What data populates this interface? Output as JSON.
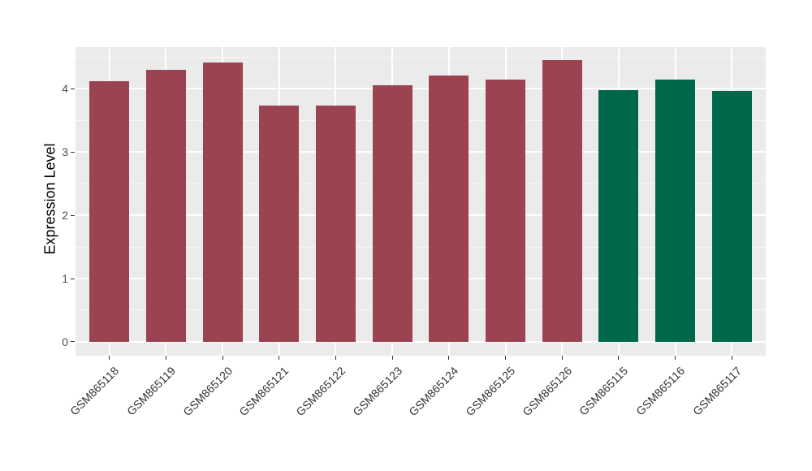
{
  "chart_data": {
    "type": "bar",
    "title": "",
    "xlabel": "",
    "ylabel": "Expression Level",
    "categories": [
      "GSM865118",
      "GSM865119",
      "GSM865120",
      "GSM865121",
      "GSM865122",
      "GSM865123",
      "GSM865124",
      "GSM865125",
      "GSM865126",
      "GSM865115",
      "GSM865116",
      "GSM865117"
    ],
    "values": [
      4.12,
      4.3,
      4.41,
      3.73,
      3.74,
      4.06,
      4.21,
      4.14,
      4.45,
      3.98,
      4.15,
      3.97
    ],
    "bar_colors": [
      "#9B4350",
      "#9B4350",
      "#9B4350",
      "#9B4350",
      "#9B4350",
      "#9B4350",
      "#9B4350",
      "#9B4350",
      "#9B4350",
      "#00684A",
      "#00684A",
      "#00684A"
    ],
    "group_colors": {
      "maroon_group": "#9B4350",
      "green_group": "#00684A"
    },
    "ylim": [
      -0.22,
      4.66
    ],
    "yticks": [
      0,
      1,
      2,
      3,
      4
    ],
    "minor_yticks": [
      0.5,
      1.5,
      2.5,
      3.5,
      4.5
    ],
    "bar_width_fraction": 0.7,
    "grid": true,
    "legend": "none",
    "panel_bg": "#EBEBEB",
    "grid_color": "#FFFFFF",
    "tick_mark_color": "#333333",
    "axis_text_color": "#4D4D4D",
    "xtick_label_color": "#333333"
  }
}
